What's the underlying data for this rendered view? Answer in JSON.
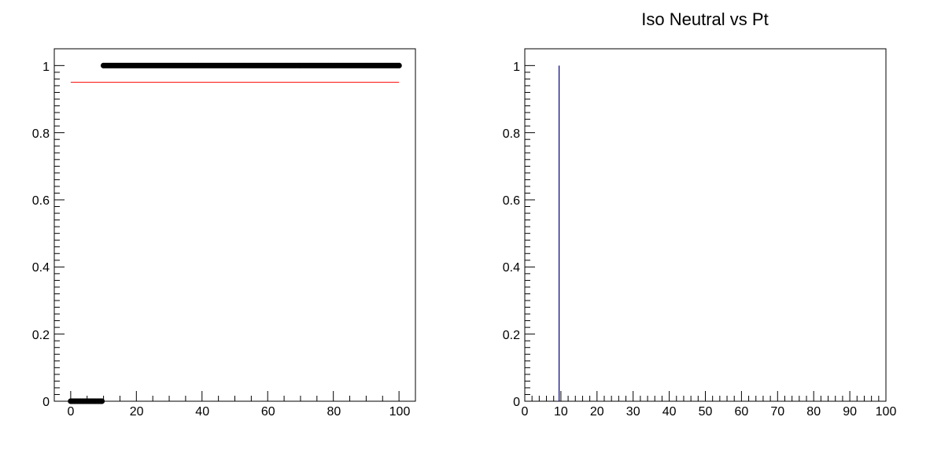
{
  "chart_data": [
    {
      "type": "scatter",
      "title": "",
      "xlabel": "",
      "ylabel": "",
      "xlim": [
        -5,
        105
      ],
      "ylim": [
        0,
        1.05
      ],
      "grid": false,
      "x_tick_labels": [
        "0",
        "20",
        "40",
        "60",
        "80",
        "100"
      ],
      "y_tick_labels": [
        "0",
        "0.2",
        "0.4",
        "0.6",
        "0.8",
        "1"
      ],
      "series": [
        {
          "color": "#000000",
          "x": [
            0,
            0.5,
            1,
            1.5,
            2,
            2.5,
            3,
            3.5,
            4,
            4.5,
            5,
            5.5,
            6,
            6.5,
            7,
            7.5,
            8,
            8.5,
            9,
            9.5,
            10,
            10.5,
            11,
            11.5,
            12,
            12.5,
            13,
            13.5,
            14,
            14.5,
            15,
            15.5,
            16,
            16.5,
            17,
            17.5,
            18,
            18.5,
            19,
            19.5,
            20,
            20.5,
            21,
            21.5,
            22,
            22.5,
            23,
            23.5,
            24,
            24.5,
            25,
            25.5,
            26,
            26.5,
            27,
            27.5,
            28,
            28.5,
            29,
            29.5,
            30,
            30.5,
            31,
            31.5,
            32,
            32.5,
            33,
            33.5,
            34,
            34.5,
            35,
            35.5,
            36,
            36.5,
            37,
            37.5,
            38,
            38.5,
            39,
            39.5,
            40,
            40.5,
            41,
            41.5,
            42,
            42.5,
            43,
            43.5,
            44,
            44.5,
            45,
            45.5,
            46,
            46.5,
            47,
            47.5,
            48,
            48.5,
            49,
            49.5,
            50,
            50.5,
            51,
            51.5,
            52,
            52.5,
            53,
            53.5,
            54,
            54.5,
            55,
            55.5,
            56,
            56.5,
            57,
            57.5,
            58,
            58.5,
            59,
            59.5,
            60,
            60.5,
            61,
            61.5,
            62,
            62.5,
            63,
            63.5,
            64,
            64.5,
            65,
            65.5,
            66,
            66.5,
            67,
            67.5,
            68,
            68.5,
            69,
            69.5,
            70,
            70.5,
            71,
            71.5,
            72,
            72.5,
            73,
            73.5,
            74,
            74.5,
            75,
            75.5,
            76,
            76.5,
            77,
            77.5,
            78,
            78.5,
            79,
            79.5,
            80,
            80.5,
            81,
            81.5,
            82,
            82.5,
            83,
            83.5,
            84,
            84.5,
            85,
            85.5,
            86,
            86.5,
            87,
            87.5,
            88,
            88.5,
            89,
            89.5,
            90,
            90.5,
            91,
            91.5,
            92,
            92.5,
            93,
            93.5,
            94,
            94.5,
            95,
            95.5,
            96,
            96.5,
            97,
            97.5,
            98,
            98.5,
            99,
            99.5,
            100
          ],
          "y": [
            0,
            0,
            0,
            0,
            0,
            0,
            0,
            0,
            0,
            0,
            0,
            0,
            0,
            0,
            0,
            0,
            0,
            0,
            0,
            0,
            1,
            1,
            1,
            1,
            1,
            1,
            1,
            1,
            1,
            1,
            1,
            1,
            1,
            1,
            1,
            1,
            1,
            1,
            1,
            1,
            1,
            1,
            1,
            1,
            1,
            1,
            1,
            1,
            1,
            1,
            1,
            1,
            1,
            1,
            1,
            1,
            1,
            1,
            1,
            1,
            1,
            1,
            1,
            1,
            1,
            1,
            1,
            1,
            1,
            1,
            1,
            1,
            1,
            1,
            1,
            1,
            1,
            1,
            1,
            1,
            1,
            1,
            1,
            1,
            1,
            1,
            1,
            1,
            1,
            1,
            1,
            1,
            1,
            1,
            1,
            1,
            1,
            1,
            1,
            1,
            1,
            1,
            1,
            1,
            1,
            1,
            1,
            1,
            1,
            1,
            1,
            1,
            1,
            1,
            1,
            1,
            1,
            1,
            1,
            1,
            1,
            1,
            1,
            1,
            1,
            1,
            1,
            1,
            1,
            1,
            1,
            1,
            1,
            1,
            1,
            1,
            1,
            1,
            1,
            1,
            1,
            1,
            1,
            1,
            1,
            1,
            1,
            1,
            1,
            1,
            1,
            1,
            1,
            1,
            1,
            1,
            1,
            1,
            1,
            1,
            1,
            1,
            1,
            1,
            1,
            1,
            1,
            1,
            1,
            1,
            1,
            1,
            1,
            1,
            1,
            1,
            1,
            1,
            1,
            1,
            1,
            1,
            1,
            1,
            1,
            1,
            1,
            1,
            1,
            1,
            1,
            1,
            1,
            1,
            1,
            1,
            1,
            1,
            1,
            1,
            1
          ]
        }
      ],
      "reference_lines": [
        {
          "y": 0.95,
          "x_from": 0,
          "x_to": 100,
          "color": "#ff0000"
        }
      ]
    },
    {
      "type": "bar",
      "title": "Iso Neutral vs Pt",
      "xlabel": "",
      "ylabel": "",
      "xlim": [
        0,
        100
      ],
      "ylim": [
        0,
        1.05
      ],
      "grid": false,
      "x_tick_labels": [
        "0",
        "10",
        "20",
        "30",
        "40",
        "50",
        "60",
        "70",
        "80",
        "90",
        "100"
      ],
      "y_tick_labels": [
        "0",
        "0.2",
        "0.4",
        "0.6",
        "0.8",
        "1"
      ],
      "series": [
        {
          "color": "#000080",
          "x": [
            9.5
          ],
          "values": [
            1
          ]
        }
      ]
    }
  ]
}
